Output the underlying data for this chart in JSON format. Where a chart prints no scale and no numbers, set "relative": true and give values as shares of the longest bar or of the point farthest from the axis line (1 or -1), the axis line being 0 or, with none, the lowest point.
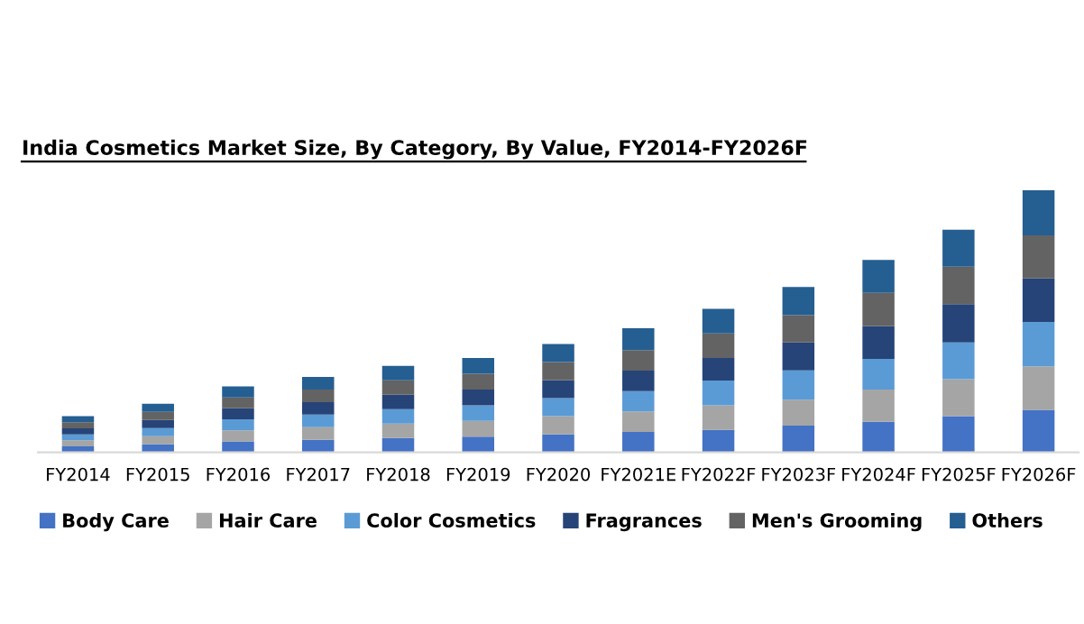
{
  "chart_data": {
    "type": "bar",
    "title": "India Cosmetics Market Size, By Category, By Value, FY2014-FY2026F",
    "relative": true,
    "stacked": true,
    "legend": "bottom",
    "grid": false,
    "categories": [
      "FY2014",
      "FY2015",
      "FY2016",
      "FY2017",
      "FY2018",
      "FY2019",
      "FY2020",
      "FY2021E",
      "FY2022F",
      "FY2023F",
      "FY2024F",
      "FY2025F",
      "FY2026F"
    ],
    "series": [
      {
        "name": "Body Care",
        "color": "#4472c4",
        "values": [
          0.023,
          0.031,
          0.042,
          0.048,
          0.055,
          0.06,
          0.069,
          0.078,
          0.086,
          0.102,
          0.117,
          0.138,
          0.162
        ]
      },
      {
        "name": "Hair Care",
        "color": "#a5a5a5",
        "values": [
          0.023,
          0.031,
          0.042,
          0.048,
          0.055,
          0.06,
          0.069,
          0.078,
          0.094,
          0.099,
          0.123,
          0.141,
          0.166
        ]
      },
      {
        "name": "Color Cosmetics",
        "color": "#5b9bd5",
        "values": [
          0.023,
          0.031,
          0.042,
          0.048,
          0.055,
          0.06,
          0.069,
          0.078,
          0.094,
          0.112,
          0.117,
          0.141,
          0.17
        ]
      },
      {
        "name": "Fragrances",
        "color": "#264478",
        "values": [
          0.023,
          0.031,
          0.042,
          0.048,
          0.055,
          0.06,
          0.069,
          0.078,
          0.086,
          0.107,
          0.125,
          0.146,
          0.166
        ]
      },
      {
        "name": "Men's Grooming",
        "color": "#636363",
        "values": [
          0.023,
          0.031,
          0.042,
          0.048,
          0.055,
          0.06,
          0.069,
          0.078,
          0.094,
          0.104,
          0.127,
          0.143,
          0.164
        ]
      },
      {
        "name": "Others",
        "color": "#255e91",
        "values": [
          0.023,
          0.031,
          0.042,
          0.048,
          0.055,
          0.06,
          0.069,
          0.084,
          0.094,
          0.107,
          0.125,
          0.141,
          0.172
        ]
      }
    ]
  }
}
